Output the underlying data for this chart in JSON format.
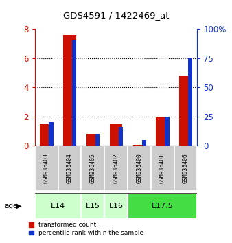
{
  "title": "GDS4591 / 1422469_at",
  "samples": [
    "GSM936403",
    "GSM936404",
    "GSM936405",
    "GSM936402",
    "GSM936400",
    "GSM936401",
    "GSM936406"
  ],
  "transformed_count": [
    1.5,
    7.6,
    0.8,
    1.5,
    0.05,
    2.0,
    4.8
  ],
  "percentile_rank": [
    20,
    91,
    10,
    16,
    5,
    25,
    75
  ],
  "age_group_spans": [
    {
      "label": "E14",
      "start": 0,
      "end": 2,
      "color": "#ccffcc"
    },
    {
      "label": "E15",
      "start": 2,
      "end": 3,
      "color": "#ccffcc"
    },
    {
      "label": "E16",
      "start": 3,
      "end": 4,
      "color": "#ccffcc"
    },
    {
      "label": "E17.5",
      "start": 4,
      "end": 7,
      "color": "#44dd44"
    }
  ],
  "bar_color_red": "#cc1100",
  "bar_color_blue": "#1133cc",
  "ylim_left": [
    0,
    8
  ],
  "ylim_right": [
    0,
    100
  ],
  "yticks_left": [
    0,
    2,
    4,
    6,
    8
  ],
  "yticks_right": [
    0,
    25,
    50,
    75,
    100
  ],
  "ylabel_left_color": "#cc1100",
  "ylabel_right_color": "#1133cc",
  "legend_labels": [
    "transformed count",
    "percentile rank within the sample"
  ],
  "legend_colors": [
    "#cc1100",
    "#1133cc"
  ],
  "background_color": "#ffffff",
  "sample_box_color": "#cccccc",
  "red_bar_width": 0.55,
  "blue_bar_width": 0.18
}
